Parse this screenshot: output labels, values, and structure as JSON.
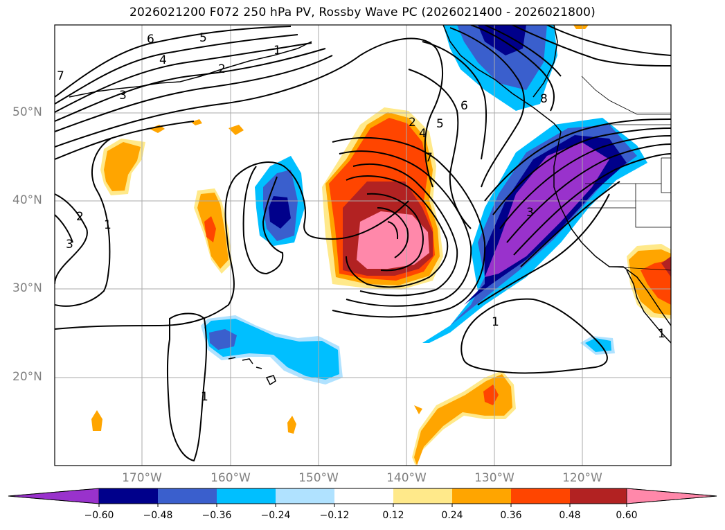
{
  "title": "2026021200 F072 250 hPa PV, Rossby Wave PC (2026021400 - 2026021800)",
  "map": {
    "lat_labels": [
      "50°N",
      "40°N",
      "30°N",
      "20°N"
    ],
    "lon_labels": [
      "170°W",
      "160°W",
      "150°W",
      "140°W",
      "130°W",
      "120°W"
    ],
    "contour_labels": [
      "7",
      "6",
      "5",
      "4",
      "3",
      "2",
      "1",
      "3",
      "2",
      "1",
      "1",
      "1",
      "2",
      "4",
      "5",
      "6",
      "7",
      "8",
      "3",
      "1"
    ]
  },
  "colorbar": {
    "ticks": [
      "−0.60",
      "−0.48",
      "−0.36",
      "−0.24",
      "−0.12",
      "0.12",
      "0.24",
      "0.36",
      "0.48",
      "0.60"
    ],
    "colors": [
      "#9932cc",
      "#00008b",
      "#3a5fcd",
      "#00bfff",
      "#b0e2ff",
      "#ffffff",
      "#ffe98a",
      "#ffa500",
      "#ff4500",
      "#b22222",
      "#ff88aa",
      "#ff88aa"
    ]
  }
}
